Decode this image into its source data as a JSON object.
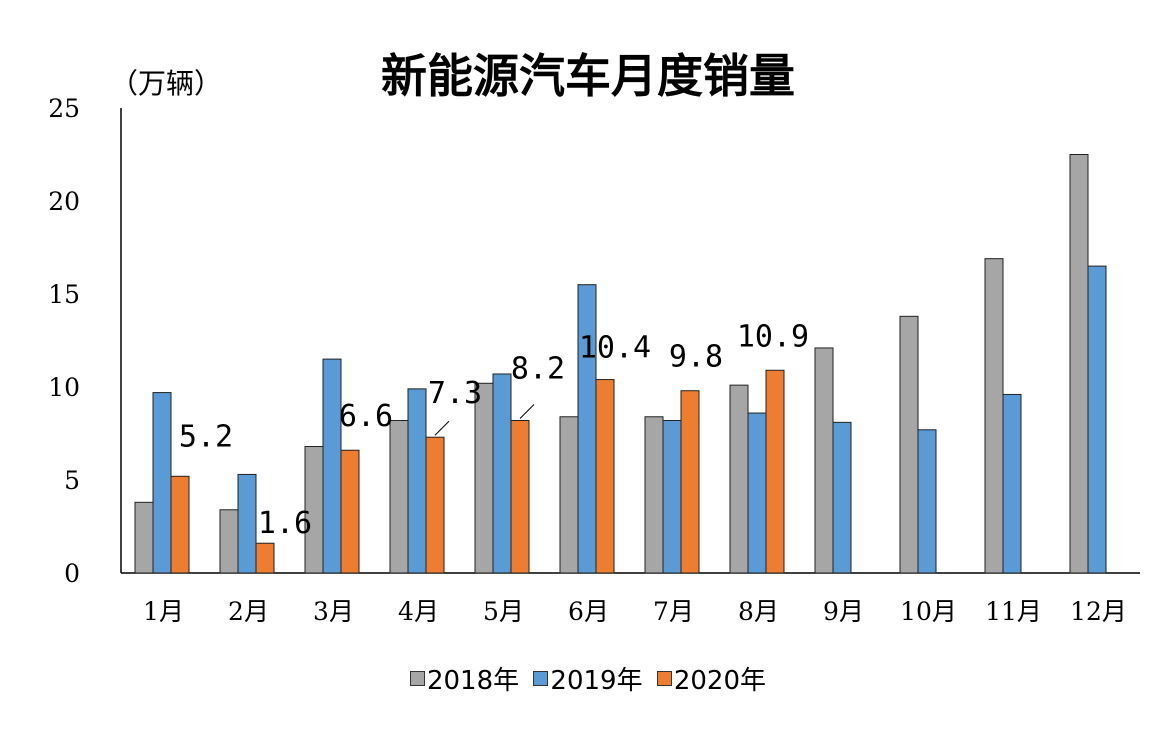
{
  "chart_data": {
    "type": "bar",
    "title": "新能源汽车月度销量",
    "ylabel": "（万辆）",
    "categories": [
      "1月",
      "2月",
      "3月",
      "4月",
      "5月",
      "6月",
      "7月",
      "8月",
      "9月",
      "10月",
      "11月",
      "12月"
    ],
    "series": [
      {
        "name": "2018年",
        "color": "#a6a6a6",
        "values": [
          3.8,
          3.4,
          6.8,
          8.2,
          10.2,
          8.4,
          8.4,
          10.1,
          12.1,
          13.8,
          16.9,
          22.5
        ]
      },
      {
        "name": "2019年",
        "color": "#5b9bd5",
        "values": [
          9.7,
          5.3,
          11.5,
          9.9,
          10.7,
          15.5,
          8.2,
          8.6,
          8.1,
          7.7,
          9.6,
          16.5
        ]
      },
      {
        "name": "2020年",
        "color": "#ed7d31",
        "values": [
          5.2,
          1.6,
          6.6,
          7.3,
          8.2,
          10.4,
          9.8,
          10.9,
          null,
          null,
          null,
          null
        ]
      }
    ],
    "data_labels": [
      "5.2",
      "1.6",
      "6.6",
      "7.3",
      "8.2",
      "10.4",
      "9.8",
      "10.9"
    ],
    "ylim": [
      0,
      25
    ],
    "yticks": [
      0,
      5,
      10,
      15,
      20,
      25
    ],
    "grid": false,
    "legend": "bottom"
  }
}
